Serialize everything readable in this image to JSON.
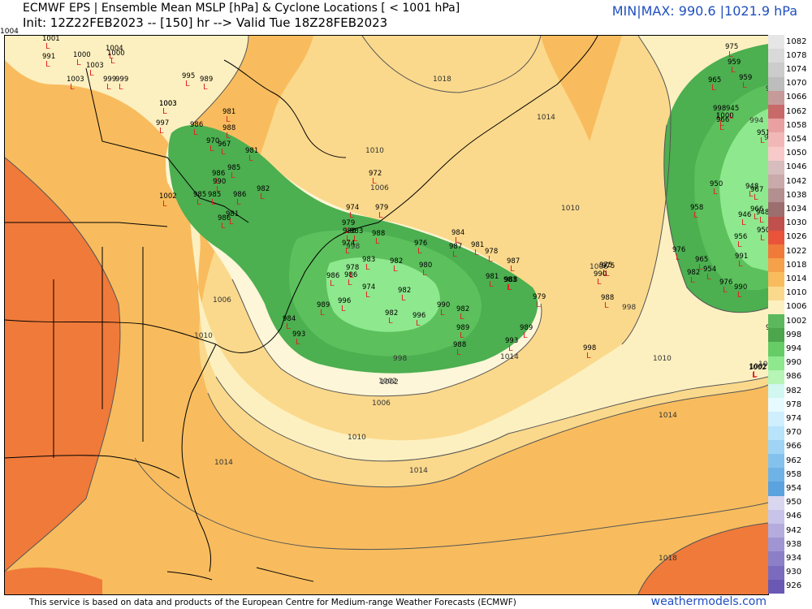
{
  "header": {
    "title_line1": "ECMWF EPS | Ensemble Mean MSLP [hPa] & Cyclone Locations [ < 1001 hPa]",
    "title_line2": "Init: 12Z22FEB2023 -- [150] hr --> Valid Tue 18Z28FEB2023",
    "minmax": "MIN|MAX: 990.6 |1021.9 hPa"
  },
  "corner_label": "1004",
  "footer": {
    "credit": "This service is based on data and products of the European Centre for Medium-range Weather Forecasts (ECMWF)",
    "brand": "weathermodels.com"
  },
  "colorbar": {
    "labels": [
      "1082",
      "1078",
      "1074",
      "1070",
      "1066",
      "1062",
      "1058",
      "1054",
      "1050",
      "1046",
      "1042",
      "1038",
      "1034",
      "1030",
      "1026",
      "1022",
      "1018",
      "1014",
      "1010",
      "1006",
      "1002",
      "998",
      "994",
      "990",
      "986",
      "982",
      "978",
      "974",
      "970",
      "966",
      "962",
      "958",
      "954",
      "950",
      "946",
      "942",
      "938",
      "934",
      "930",
      "926"
    ],
    "colors": [
      "#e6e6e6",
      "#d9d9d9",
      "#cccccc",
      "#bdbdbd",
      "#c79a9a",
      "#c86a6a",
      "#e8a0a0",
      "#f2b8b8",
      "#f7c9c9",
      "#d7bdbd",
      "#c9a9a9",
      "#b48f8f",
      "#9c6e6e",
      "#c0504d",
      "#e8533a",
      "#f07a3a",
      "#f5a04a",
      "#f8bc5e",
      "#fbd98c",
      "#fdf0c0",
      "#5cb85c",
      "#4ca64c",
      "#66cc66",
      "#8ee88e",
      "#b6f5b6",
      "#d0f7f0",
      "#e6fbff",
      "#cfefff",
      "#b7e3fb",
      "#9fd4f5",
      "#84c2ee",
      "#6fb3e6",
      "#5aa3de",
      "#d9d6ef",
      "#c8c3e8",
      "#b4acdd",
      "#9f95d2",
      "#8b7fc8",
      "#7a6bbf",
      "#6a58b5"
    ]
  },
  "map": {
    "isobar_labels": [
      "1010",
      "1006",
      "998",
      "1002",
      "1006",
      "1010",
      "1014",
      "1014",
      "1010",
      "1006",
      "998",
      "994",
      "1002",
      "1010",
      "1006",
      "1014",
      "1018",
      "1018",
      "1014",
      "998",
      "994",
      "1010",
      "1014",
      "1002",
      "998"
    ],
    "cyclones": [
      {
        "v": "1001"
      },
      {
        "v": "991"
      },
      {
        "v": "1000"
      },
      {
        "v": "1003"
      },
      {
        "v": "1003"
      },
      {
        "v": "1004"
      },
      {
        "v": "1000"
      },
      {
        "v": "999"
      },
      {
        "v": "999"
      },
      {
        "v": "1003"
      },
      {
        "v": "995"
      },
      {
        "v": "989"
      },
      {
        "v": "1003"
      },
      {
        "v": "997"
      },
      {
        "v": "986"
      },
      {
        "v": "981"
      },
      {
        "v": "988"
      },
      {
        "v": "970"
      },
      {
        "v": "967"
      },
      {
        "v": "981"
      },
      {
        "v": "985"
      },
      {
        "v": "986"
      },
      {
        "v": "990"
      },
      {
        "v": "985"
      },
      {
        "v": "982"
      },
      {
        "v": "986"
      },
      {
        "v": "985"
      },
      {
        "v": "1002"
      },
      {
        "v": "986"
      },
      {
        "v": "981"
      },
      {
        "v": "972"
      },
      {
        "v": "974"
      },
      {
        "v": "979"
      },
      {
        "v": "979"
      },
      {
        "v": "980"
      },
      {
        "v": "983"
      },
      {
        "v": "988"
      },
      {
        "v": "984"
      },
      {
        "v": "976"
      },
      {
        "v": "987"
      },
      {
        "v": "981"
      },
      {
        "v": "978"
      },
      {
        "v": "987"
      },
      {
        "v": "980"
      },
      {
        "v": "975"
      },
      {
        "v": "974"
      },
      {
        "v": "983"
      },
      {
        "v": "982"
      },
      {
        "v": "978"
      },
      {
        "v": "986"
      },
      {
        "v": "986"
      },
      {
        "v": "974"
      },
      {
        "v": "982"
      },
      {
        "v": "982"
      },
      {
        "v": "996"
      },
      {
        "v": "990"
      },
      {
        "v": "982"
      },
      {
        "v": "984"
      },
      {
        "v": "989"
      },
      {
        "v": "993"
      },
      {
        "v": "989"
      },
      {
        "v": "996"
      },
      {
        "v": "989"
      },
      {
        "v": "988"
      },
      {
        "v": "993"
      },
      {
        "v": "981"
      },
      {
        "v": "983"
      },
      {
        "v": "988"
      },
      {
        "v": "979"
      },
      {
        "v": "975"
      },
      {
        "v": "990"
      },
      {
        "v": "988"
      },
      {
        "v": "998"
      },
      {
        "v": "996"
      },
      {
        "v": "975"
      },
      {
        "v": "959"
      },
      {
        "v": "965"
      },
      {
        "v": "998"
      },
      {
        "v": "945"
      },
      {
        "v": "966"
      },
      {
        "v": "1000"
      },
      {
        "v": "959"
      },
      {
        "v": "951"
      },
      {
        "v": "1002"
      },
      {
        "v": "950"
      },
      {
        "v": "948"
      },
      {
        "v": "967"
      },
      {
        "v": "958"
      },
      {
        "v": "966"
      },
      {
        "v": "946"
      },
      {
        "v": "948"
      },
      {
        "v": "956"
      },
      {
        "v": "950"
      },
      {
        "v": "976"
      },
      {
        "v": "965"
      },
      {
        "v": "991"
      },
      {
        "v": "954"
      },
      {
        "v": "982"
      },
      {
        "v": "976"
      },
      {
        "v": "990"
      },
      {
        "v": "994"
      },
      {
        "v": "1002"
      }
    ]
  }
}
